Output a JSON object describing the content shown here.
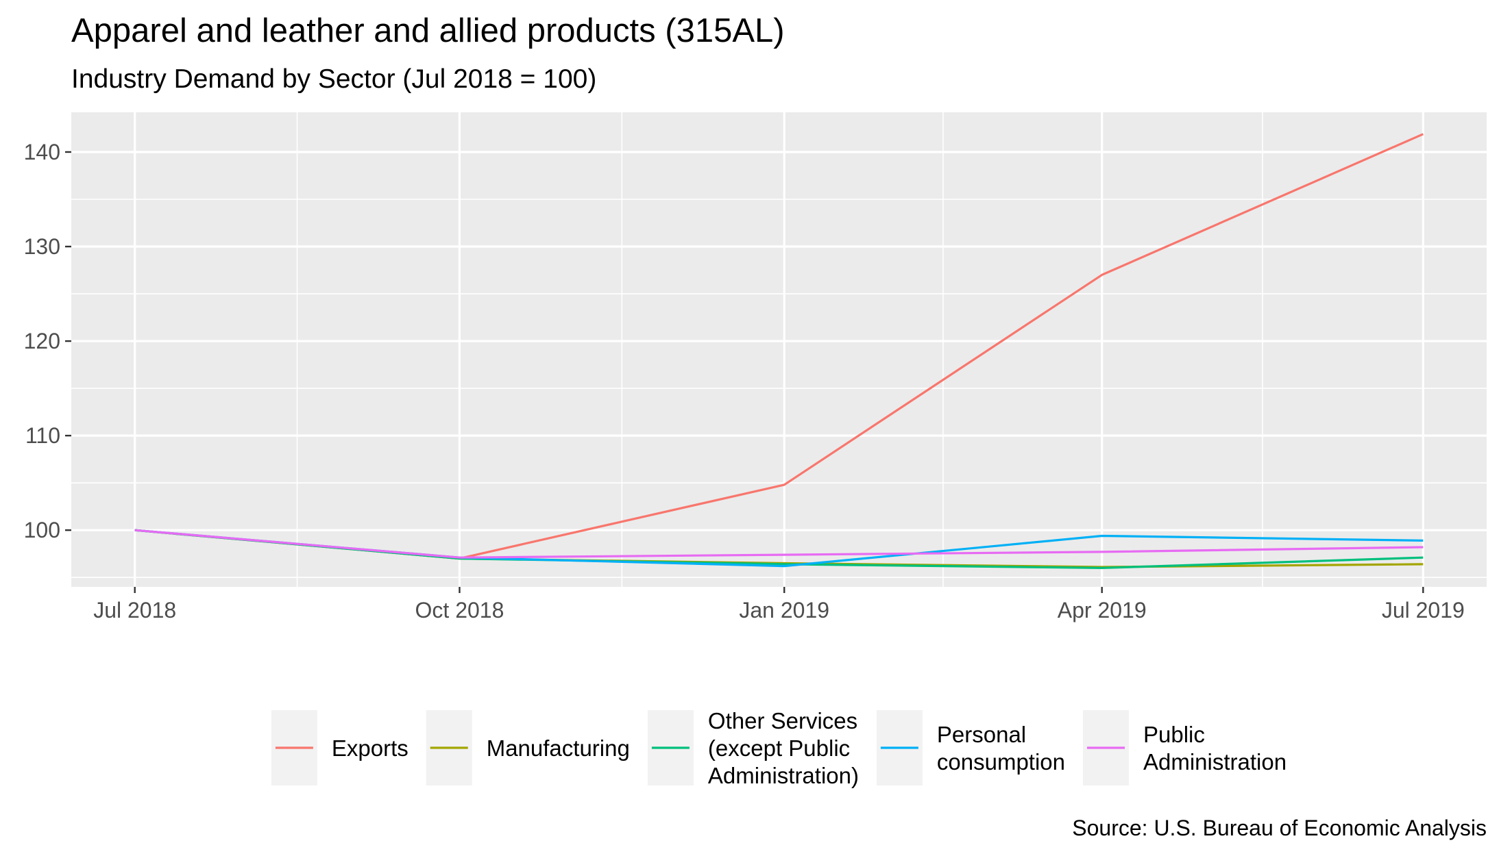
{
  "chart_data": {
    "type": "line",
    "title": "Apparel and leather and allied products (315AL)",
    "subtitle": "Industry Demand by Sector (Jul 2018 = 100)",
    "caption": "Source: U.S. Bureau of Economic Analysis",
    "xlabel": "",
    "ylabel": "",
    "x": [
      "2018-07-01",
      "2018-10-01",
      "2019-01-01",
      "2019-04-01",
      "2019-07-01"
    ],
    "x_tick_labels": [
      "Jul 2018",
      "Oct 2018",
      "Jan 2019",
      "Apr 2019",
      "Jul 2019"
    ],
    "xlim": [
      "2018-06-13",
      "2019-07-19"
    ],
    "ylim": [
      94,
      144.2
    ],
    "y_ticks": [
      100,
      110,
      120,
      130,
      140
    ],
    "y_tick_labels": [
      "100",
      "110",
      "120",
      "130",
      "140"
    ],
    "grid": true,
    "legend_position": "bottom",
    "background": "#ebebeb",
    "series": [
      {
        "name": "Exports",
        "color": "#f8766d",
        "values": [
          100,
          97.0,
          104.8,
          127.0,
          141.9
        ],
        "legend_lines": [
          "Exports"
        ]
      },
      {
        "name": "Manufacturing",
        "color": "#a3a500",
        "values": [
          100,
          97.0,
          96.5,
          96.1,
          96.4
        ],
        "legend_lines": [
          "Manufacturing"
        ]
      },
      {
        "name": "Other Services (except Public Administration)",
        "color": "#00bf7d",
        "values": [
          100,
          97.0,
          96.4,
          96.0,
          97.1
        ],
        "legend_lines": [
          "Other Services",
          "(except Public",
          "Administration)"
        ]
      },
      {
        "name": "Personal consumption",
        "color": "#00b0f6",
        "values": [
          100,
          97.1,
          96.2,
          99.4,
          98.9
        ],
        "legend_lines": [
          "Personal",
          "consumption"
        ]
      },
      {
        "name": "Public Administration",
        "color": "#e76bf3",
        "values": [
          100,
          97.1,
          97.4,
          97.7,
          98.2
        ],
        "legend_lines": [
          "Public",
          "Administration"
        ]
      }
    ]
  }
}
